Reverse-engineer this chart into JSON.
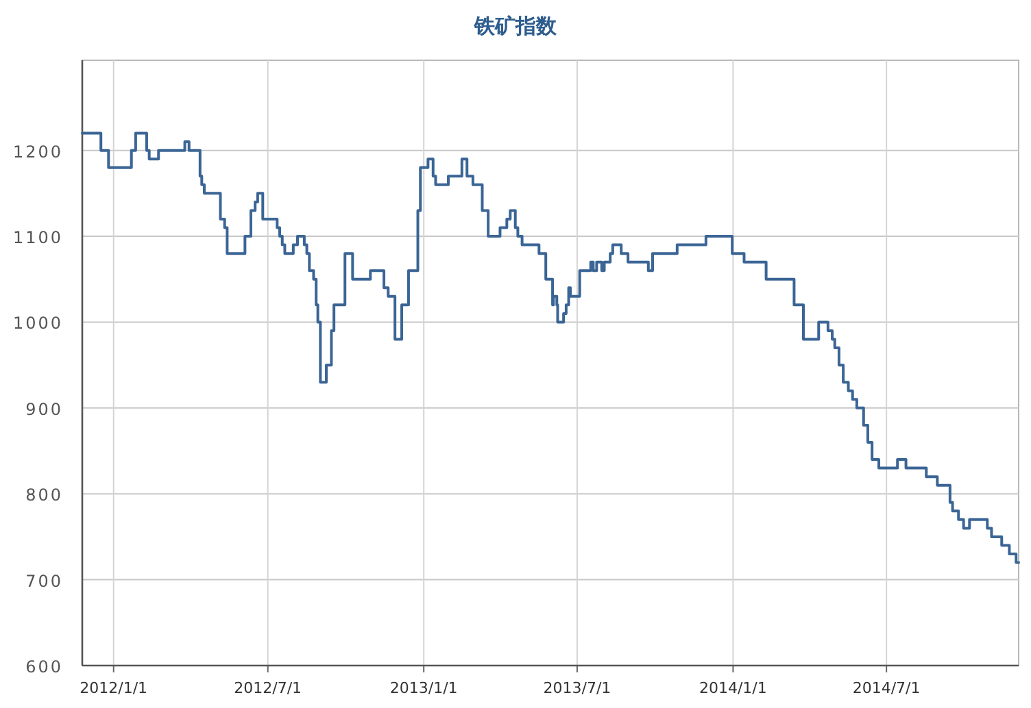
{
  "chart_data": {
    "type": "step",
    "title": "铁矿指数",
    "color": "#3a6595",
    "grid": true,
    "xlim": [
      "2011-11-25",
      "2014-12-04"
    ],
    "ylim": [
      600,
      1305
    ],
    "xticks": [
      {
        "value": "2012-01-01",
        "label": "2012/1/1"
      },
      {
        "value": "2012-07-01",
        "label": "2012/7/1"
      },
      {
        "value": "2013-01-01",
        "label": "2013/1/1"
      },
      {
        "value": "2013-07-01",
        "label": "2013/7/1"
      },
      {
        "value": "2014-01-01",
        "label": "2014/1/1"
      },
      {
        "value": "2014-07-01",
        "label": "2014/7/1"
      }
    ],
    "yticks": [
      600,
      700,
      800,
      900,
      1000,
      1100,
      1200
    ],
    "x": [
      "2011-11-25",
      "2011-12-17",
      "2011-12-26",
      "2012-01-22",
      "2012-01-27",
      "2012-02-09",
      "2012-02-12",
      "2012-02-23",
      "2012-03-25",
      "2012-03-30",
      "2012-04-12",
      "2012-04-14",
      "2012-04-17",
      "2012-05-06",
      "2012-05-11",
      "2012-05-14",
      "2012-06-04",
      "2012-06-11",
      "2012-06-16",
      "2012-06-19",
      "2012-06-25",
      "2012-07-12",
      "2012-07-15",
      "2012-07-18",
      "2012-07-21",
      "2012-07-31",
      "2012-08-05",
      "2012-08-13",
      "2012-08-16",
      "2012-08-19",
      "2012-08-24",
      "2012-08-27",
      "2012-08-29",
      "2012-09-01",
      "2012-09-08",
      "2012-09-14",
      "2012-09-17",
      "2012-09-30",
      "2012-10-09",
      "2012-10-30",
      "2012-11-15",
      "2012-11-20",
      "2012-11-28",
      "2012-12-06",
      "2012-12-14",
      "2012-12-25",
      "2012-12-28",
      "2013-01-06",
      "2013-01-12",
      "2013-01-15",
      "2013-01-30",
      "2013-02-15",
      "2013-02-21",
      "2013-02-28",
      "2013-03-11",
      "2013-03-18",
      "2013-04-01",
      "2013-04-09",
      "2013-04-13",
      "2013-04-19",
      "2013-04-22",
      "2013-04-27",
      "2013-05-17",
      "2013-05-25",
      "2013-06-02",
      "2013-06-03",
      "2013-06-07",
      "2013-06-08",
      "2013-06-15",
      "2013-06-18",
      "2013-06-21",
      "2013-06-23",
      "2013-07-04",
      "2013-07-17",
      "2013-07-20",
      "2013-07-24",
      "2013-07-30",
      "2013-08-02",
      "2013-08-09",
      "2013-08-12",
      "2013-08-22",
      "2013-08-30",
      "2013-09-23",
      "2013-09-28",
      "2013-10-27",
      "2013-11-30",
      "2013-12-31",
      "2014-01-14",
      "2014-02-09",
      "2014-03-14",
      "2014-03-25",
      "2014-04-12",
      "2014-04-23",
      "2014-04-28",
      "2014-05-01",
      "2014-05-06",
      "2014-05-11",
      "2014-05-17",
      "2014-05-22",
      "2014-05-27",
      "2014-06-04",
      "2014-06-09",
      "2014-06-14",
      "2014-06-22",
      "2014-07-14",
      "2014-07-24",
      "2014-08-17",
      "2014-08-30",
      "2014-09-14",
      "2014-09-17",
      "2014-09-24",
      "2014-09-30",
      "2014-10-07",
      "2014-10-28",
      "2014-11-02",
      "2014-11-14",
      "2014-11-23",
      "2014-12-01",
      "2014-12-04"
    ],
    "values": [
      1220,
      1200,
      1180,
      1200,
      1220,
      1200,
      1190,
      1200,
      1210,
      1200,
      1170,
      1160,
      1150,
      1120,
      1110,
      1080,
      1100,
      1130,
      1140,
      1150,
      1120,
      1110,
      1100,
      1090,
      1080,
      1090,
      1100,
      1090,
      1080,
      1060,
      1050,
      1020,
      1000,
      930,
      950,
      990,
      1020,
      1080,
      1050,
      1060,
      1040,
      1030,
      980,
      1020,
      1060,
      1130,
      1180,
      1190,
      1170,
      1160,
      1170,
      1190,
      1170,
      1160,
      1130,
      1100,
      1110,
      1120,
      1130,
      1110,
      1100,
      1090,
      1080,
      1050,
      1020,
      1030,
      1020,
      1000,
      1010,
      1020,
      1040,
      1030,
      1060,
      1070,
      1060,
      1070,
      1060,
      1070,
      1080,
      1090,
      1080,
      1070,
      1060,
      1080,
      1090,
      1100,
      1080,
      1070,
      1050,
      1020,
      980,
      1000,
      990,
      980,
      970,
      950,
      930,
      920,
      910,
      900,
      880,
      860,
      840,
      830,
      840,
      830,
      820,
      810,
      790,
      780,
      770,
      760,
      770,
      760,
      750,
      740,
      730,
      720,
      720
    ]
  }
}
